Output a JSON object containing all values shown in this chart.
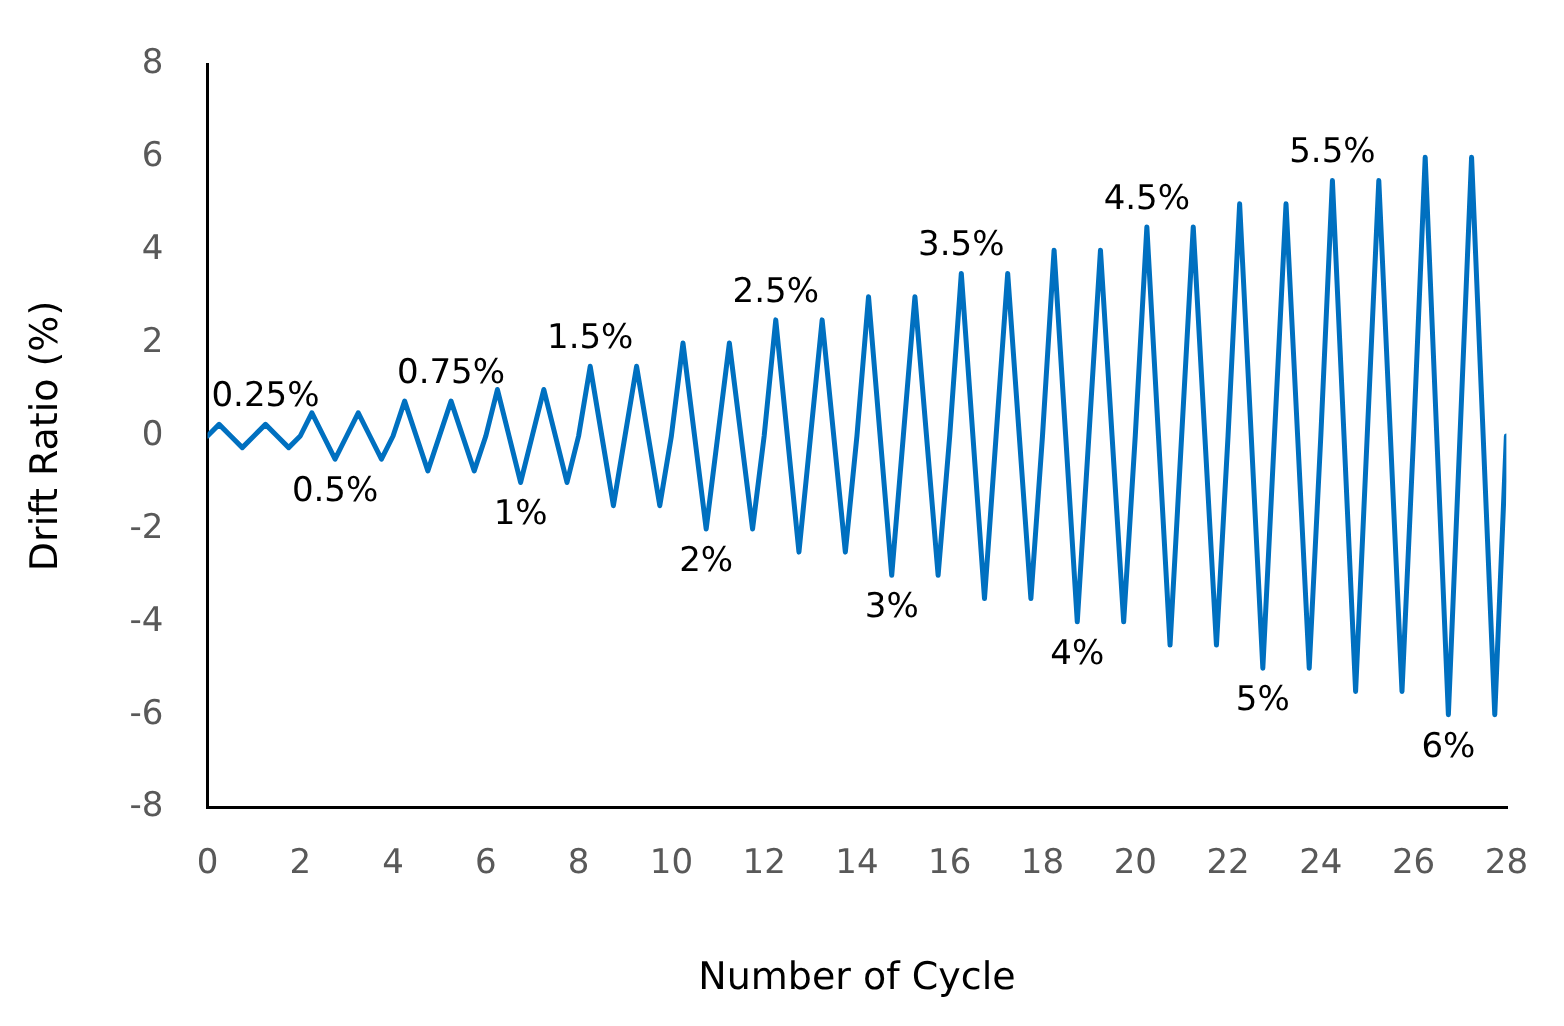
{
  "chart_data": {
    "type": "line",
    "xlabel": "Number of Cycle",
    "ylabel": "Drift Ratio (%)",
    "x": [
      0,
      0.25,
      0.5,
      0.75,
      1,
      1.25,
      1.5,
      1.75,
      2,
      2.25,
      2.5,
      2.75,
      3,
      3.25,
      3.5,
      3.75,
      4,
      4.25,
      4.5,
      4.75,
      5,
      5.25,
      5.5,
      5.75,
      6,
      6.25,
      6.5,
      6.75,
      7,
      7.25,
      7.5,
      7.75,
      8,
      8.25,
      8.5,
      8.75,
      9,
      9.25,
      9.5,
      9.75,
      10,
      10.25,
      10.5,
      10.75,
      11,
      11.25,
      11.5,
      11.75,
      12,
      12.25,
      12.5,
      12.75,
      13,
      13.25,
      13.5,
      13.75,
      14,
      14.25,
      14.5,
      14.75,
      15,
      15.25,
      15.5,
      15.75,
      16,
      16.25,
      16.5,
      16.75,
      17,
      17.25,
      17.5,
      17.75,
      18,
      18.25,
      18.5,
      18.75,
      19,
      19.25,
      19.5,
      19.75,
      20,
      20.25,
      20.5,
      20.75,
      21,
      21.25,
      21.5,
      21.75,
      22,
      22.25,
      22.5,
      22.75,
      23,
      23.25,
      23.5,
      23.75,
      24,
      24.25,
      24.5,
      24.75,
      25,
      25.25,
      25.5,
      25.75,
      26,
      26.25,
      26.5,
      26.75,
      27,
      27.25,
      27.5,
      27.75,
      28
    ],
    "series": [
      {
        "color": "#0070c0",
        "values": [
          0,
          0.25,
          0,
          -0.25,
          0,
          0.25,
          0,
          -0.25,
          0,
          0.5,
          0,
          -0.5,
          0,
          0.5,
          0,
          -0.5,
          0,
          0.75,
          0,
          -0.75,
          0,
          0.75,
          0,
          -0.75,
          0,
          1,
          0,
          -1,
          0,
          1,
          0,
          -1,
          0,
          1.5,
          0,
          -1.5,
          0,
          1.5,
          0,
          -1.5,
          0,
          2,
          0,
          -2,
          0,
          2,
          0,
          -2,
          0,
          2.5,
          0,
          -2.5,
          0,
          2.5,
          0,
          -2.5,
          0,
          3,
          0,
          -3,
          0,
          3,
          0,
          -3,
          0,
          3.5,
          0,
          -3.5,
          0,
          3.5,
          0,
          -3.5,
          0,
          4,
          0,
          -4,
          0,
          4,
          0,
          -4,
          0,
          4.5,
          0,
          -4.5,
          0,
          4.5,
          0,
          -4.5,
          0,
          5,
          0,
          -5,
          0,
          5,
          0,
          -5,
          0,
          5.5,
          0,
          -5.5,
          0,
          5.5,
          0,
          -5.5,
          0,
          6,
          0,
          -6,
          0,
          6,
          0,
          -6,
          0
        ]
      }
    ],
    "xlim": [
      0,
      28
    ],
    "xticks": [
      0,
      2,
      4,
      6,
      8,
      10,
      12,
      14,
      16,
      18,
      20,
      22,
      24,
      26,
      28
    ],
    "ylim": [
      -8,
      8
    ],
    "yticks": [
      -8,
      -6,
      -4,
      -2,
      0,
      2,
      4,
      6,
      8
    ],
    "grid": false,
    "legend": false,
    "marker": "none",
    "line_style": "solid",
    "annotations": [
      {
        "text": "0.25%",
        "x": 1.25,
        "y": 0.25
      },
      {
        "text": "0.5%",
        "x": 2.75,
        "y": -0.5
      },
      {
        "text": "0.75%",
        "x": 5.25,
        "y": 0.75
      },
      {
        "text": "1%",
        "x": 6.75,
        "y": -1
      },
      {
        "text": "1.5%",
        "x": 8.25,
        "y": 1.5
      },
      {
        "text": "2%",
        "x": 10.75,
        "y": -2
      },
      {
        "text": "2.5%",
        "x": 12.25,
        "y": 2.5
      },
      {
        "text": "3%",
        "x": 14.75,
        "y": -3
      },
      {
        "text": "3.5%",
        "x": 16.25,
        "y": 3.5
      },
      {
        "text": "4%",
        "x": 18.75,
        "y": -4
      },
      {
        "text": "4.5%",
        "x": 20.25,
        "y": 4.5
      },
      {
        "text": "5%",
        "x": 22.75,
        "y": -5
      },
      {
        "text": "5.5%",
        "x": 24.25,
        "y": 5.5
      },
      {
        "text": "6%",
        "x": 26.75,
        "y": -6
      }
    ]
  }
}
